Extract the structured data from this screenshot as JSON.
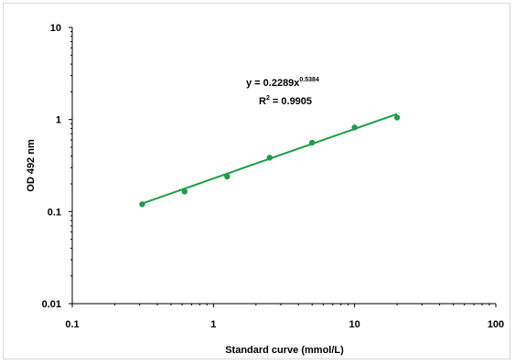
{
  "chart_data": {
    "type": "scatter",
    "title": "",
    "xlabel": "Standard curve (mmol/L)",
    "ylabel": "OD 492 nm",
    "xscale": "log",
    "yscale": "log",
    "xlim": [
      0.1,
      100
    ],
    "ylim": [
      0.01,
      10
    ],
    "x_ticks": [
      "0.1",
      "1",
      "10",
      "100"
    ],
    "y_ticks": [
      "0.01",
      "0.1",
      "1",
      "10"
    ],
    "grid": false,
    "legend": "none",
    "series": [
      {
        "x": [
          0.3125,
          0.625,
          1.25,
          2.5,
          5,
          10,
          20
        ],
        "y": [
          0.12,
          0.165,
          0.24,
          0.385,
          0.56,
          0.82,
          1.05
        ],
        "color": "#1f9d4a",
        "marker": "circle"
      }
    ],
    "trendline": {
      "type": "power",
      "coefficient": 0.2289,
      "exponent": 0.5384,
      "color": "#1f9d4a"
    },
    "annotations": {
      "equation_base": "y = 0.2289x",
      "equation_exponent": "0.5384",
      "r2_prefix": "R",
      "r2_superscript": "2",
      "r2_suffix": " = 0.9905"
    }
  }
}
